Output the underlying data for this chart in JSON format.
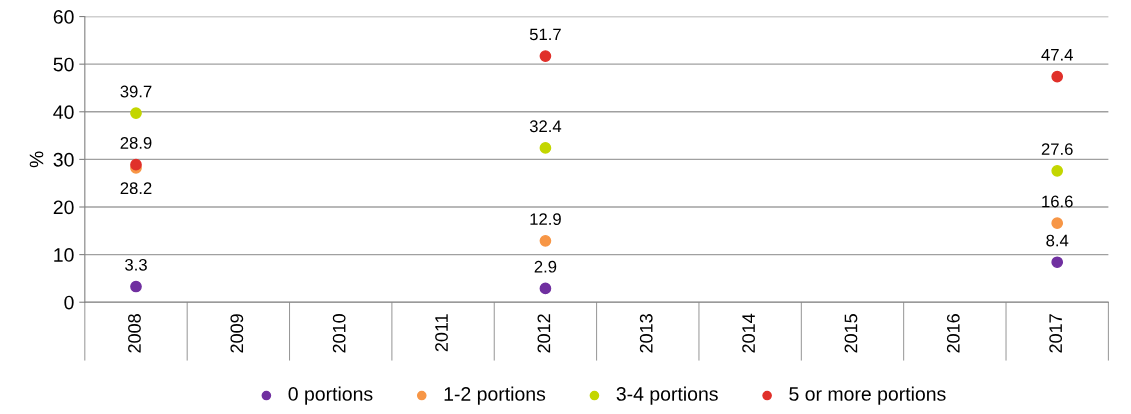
{
  "chart_data": {
    "type": "scatter",
    "ylabel": "%",
    "categories": [
      "2008",
      "2009",
      "2010",
      "2011",
      "2012",
      "2013",
      "2014",
      "2015",
      "2016",
      "2017"
    ],
    "series": [
      {
        "name": "0 portions",
        "color": "#7030a0",
        "values": [
          3.3,
          null,
          null,
          null,
          2.9,
          null,
          null,
          null,
          null,
          8.4
        ]
      },
      {
        "name": "1-2 portions",
        "color": "#f79646",
        "values": [
          28.2,
          null,
          null,
          null,
          12.9,
          null,
          null,
          null,
          null,
          16.6
        ]
      },
      {
        "name": "3-4 portions",
        "color": "#c3d600",
        "values": [
          39.7,
          null,
          null,
          null,
          32.4,
          null,
          null,
          null,
          null,
          27.6
        ]
      },
      {
        "name": "5 or more portions",
        "color": "#e0302a",
        "values": [
          28.9,
          null,
          null,
          null,
          51.7,
          null,
          null,
          null,
          null,
          47.4
        ]
      }
    ],
    "ylim": [
      0,
      60
    ],
    "yticks": [
      0,
      10,
      20,
      30,
      40,
      50,
      60
    ],
    "grid": "y",
    "legend": "bottom",
    "marker": "circle",
    "data_labels": true
  }
}
